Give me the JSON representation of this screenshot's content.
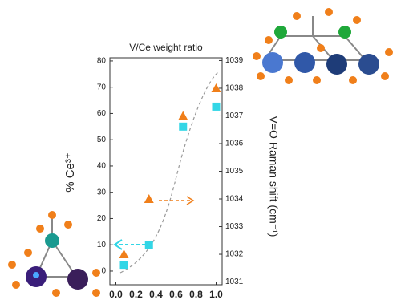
{
  "chart_data": {
    "type": "scatter",
    "title": "V/Ce weight ratio",
    "ylabel": "% Ce³⁺",
    "y2label": "V=O Raman shift (cm⁻¹)",
    "series": [
      {
        "name": "% Ce3+",
        "color": "#33d6e6",
        "marker": "square",
        "x": [
          0.08,
          0.33,
          0.67,
          1.0
        ],
        "values": [
          2.4,
          10,
          55,
          62.6
        ]
      },
      {
        "name": "V=O Raman shift",
        "color": "#f07f1a",
        "marker": "triangle",
        "axis": "y2",
        "x": [
          0.08,
          0.33,
          0.67,
          1.0
        ],
        "values": [
          1032.0,
          1034.0,
          1037.0,
          1038.0
        ]
      }
    ],
    "xlim": [
      -0.06,
      1.06
    ],
    "xticks": [
      {
        "value": 0,
        "label": "0.0"
      },
      {
        "value": 0.2,
        "label": "0.2"
      },
      {
        "value": 0.4,
        "label": "0.4"
      },
      {
        "value": 0.6,
        "label": "0.6"
      },
      {
        "value": 0.8,
        "label": "0.8"
      },
      {
        "value": 1,
        "label": "1.0"
      }
    ],
    "ylim": [
      -5.2,
      81.2
    ],
    "yticks": [
      0,
      10,
      20,
      30,
      40,
      50,
      60,
      70,
      80
    ],
    "y2lim": [
      1030.9,
      1039.1
    ],
    "y2ticks": [
      1031,
      1032,
      1033,
      1034,
      1035,
      1036,
      1037,
      1038,
      1039
    ]
  }
}
